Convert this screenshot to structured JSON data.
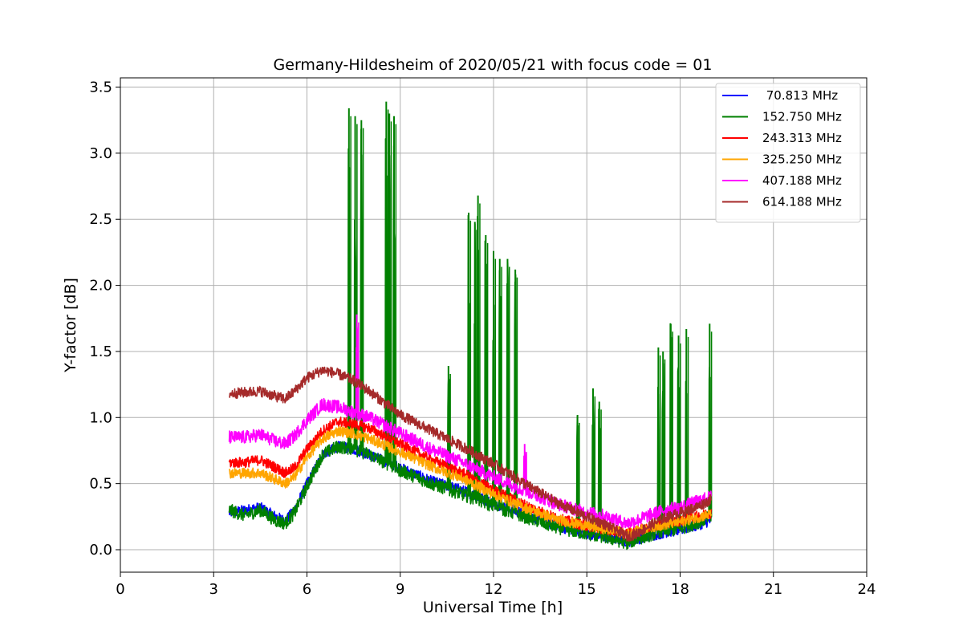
{
  "chart_data": {
    "type": "line",
    "title": "Germany-Hildesheim of 2020/05/21 with focus code = 01",
    "xlabel": "Universal Time [h]",
    "ylabel": "Y-factor [dB]",
    "xlim": [
      0,
      24
    ],
    "ylim": [
      -0.17,
      3.57
    ],
    "xticks": [
      0,
      3,
      6,
      9,
      12,
      15,
      18,
      21,
      24
    ],
    "xtick_labels": [
      "0",
      "3",
      "6",
      "9",
      "12",
      "15",
      "18",
      "21",
      "24"
    ],
    "yticks": [
      0.0,
      0.5,
      1.0,
      1.5,
      2.0,
      2.5,
      3.0,
      3.5
    ],
    "ytick_labels": [
      "0.0",
      "0.5",
      "1.0",
      "1.5",
      "2.0",
      "2.5",
      "3.0",
      "3.5"
    ],
    "grid": true,
    "legend_position": "top-right",
    "series": [
      {
        "name": " 70.813 MHz",
        "color": "#0000ff",
        "noise": 0.04,
        "x": [
          3.5,
          4.0,
          4.5,
          5.0,
          5.3,
          5.6,
          6.0,
          6.5,
          7.0,
          7.5,
          8.0,
          9.0,
          10.0,
          11.0,
          12.0,
          13.0,
          14.0,
          15.0,
          15.5,
          16.0,
          16.3,
          16.6,
          17.0,
          17.5,
          18.0,
          18.5,
          19.0
        ],
        "y": [
          0.28,
          0.3,
          0.32,
          0.25,
          0.22,
          0.3,
          0.5,
          0.72,
          0.78,
          0.76,
          0.72,
          0.62,
          0.52,
          0.45,
          0.35,
          0.27,
          0.18,
          0.12,
          0.1,
          0.08,
          0.06,
          0.08,
          0.1,
          0.13,
          0.15,
          0.18,
          0.22
        ]
      },
      {
        "name": "152.750 MHz",
        "color": "#008000",
        "noise": 0.05,
        "x": [
          3.5,
          4.0,
          4.5,
          5.0,
          5.3,
          5.6,
          6.0,
          6.5,
          7.0,
          7.5,
          8.0,
          9.0,
          10.0,
          11.0,
          12.0,
          13.0,
          14.0,
          15.0,
          15.5,
          16.0,
          16.3,
          16.6,
          17.0,
          17.5,
          18.0,
          18.5,
          19.0
        ],
        "y": [
          0.3,
          0.26,
          0.3,
          0.22,
          0.2,
          0.28,
          0.48,
          0.72,
          0.78,
          0.76,
          0.72,
          0.6,
          0.5,
          0.42,
          0.33,
          0.25,
          0.17,
          0.12,
          0.1,
          0.07,
          0.05,
          0.08,
          0.11,
          0.14,
          0.16,
          0.2,
          0.25
        ],
        "spikes": [
          {
            "x": 7.35,
            "y": 3.34
          },
          {
            "x": 7.55,
            "y": 3.28
          },
          {
            "x": 7.75,
            "y": 3.25
          },
          {
            "x": 8.55,
            "y": 3.39
          },
          {
            "x": 8.65,
            "y": 3.3
          },
          {
            "x": 8.8,
            "y": 3.28
          },
          {
            "x": 10.55,
            "y": 1.39
          },
          {
            "x": 11.2,
            "y": 2.55
          },
          {
            "x": 11.4,
            "y": 2.48
          },
          {
            "x": 11.5,
            "y": 2.68
          },
          {
            "x": 11.75,
            "y": 2.38
          },
          {
            "x": 12.0,
            "y": 2.26
          },
          {
            "x": 12.2,
            "y": 2.2
          },
          {
            "x": 12.45,
            "y": 2.2
          },
          {
            "x": 12.7,
            "y": 2.12
          },
          {
            "x": 14.7,
            "y": 1.02
          },
          {
            "x": 15.2,
            "y": 1.22
          },
          {
            "x": 15.4,
            "y": 1.12
          },
          {
            "x": 17.3,
            "y": 1.53
          },
          {
            "x": 17.45,
            "y": 1.5
          },
          {
            "x": 17.7,
            "y": 1.71
          },
          {
            "x": 17.95,
            "y": 1.62
          },
          {
            "x": 18.2,
            "y": 1.67
          },
          {
            "x": 18.95,
            "y": 1.71
          }
        ]
      },
      {
        "name": "243.313 MHz",
        "color": "#ff0000",
        "noise": 0.04,
        "x": [
          3.5,
          4.0,
          4.5,
          5.0,
          5.3,
          5.6,
          6.0,
          6.5,
          7.0,
          7.5,
          8.0,
          9.0,
          10.0,
          11.0,
          12.0,
          13.0,
          14.0,
          15.0,
          15.5,
          16.0,
          16.3,
          16.6,
          17.0,
          17.5,
          18.0,
          18.5,
          19.0
        ],
        "y": [
          0.66,
          0.66,
          0.68,
          0.62,
          0.58,
          0.62,
          0.76,
          0.9,
          0.97,
          0.95,
          0.92,
          0.8,
          0.68,
          0.58,
          0.45,
          0.34,
          0.24,
          0.18,
          0.16,
          0.14,
          0.12,
          0.14,
          0.17,
          0.2,
          0.22,
          0.25,
          0.28
        ]
      },
      {
        "name": "325.250 MHz",
        "color": "#ffa500",
        "noise": 0.04,
        "x": [
          3.5,
          4.0,
          4.5,
          5.0,
          5.3,
          5.6,
          6.0,
          6.5,
          7.0,
          7.5,
          8.0,
          9.0,
          10.0,
          11.0,
          12.0,
          13.0,
          14.0,
          15.0,
          15.5,
          16.0,
          16.3,
          16.6,
          17.0,
          17.5,
          18.0,
          18.5,
          19.0
        ],
        "y": [
          0.58,
          0.58,
          0.58,
          0.53,
          0.5,
          0.55,
          0.7,
          0.84,
          0.9,
          0.88,
          0.84,
          0.74,
          0.63,
          0.54,
          0.42,
          0.32,
          0.23,
          0.18,
          0.16,
          0.14,
          0.12,
          0.14,
          0.17,
          0.19,
          0.21,
          0.24,
          0.27
        ]
      },
      {
        "name": "407.188 MHz",
        "color": "#ff00ff",
        "noise": 0.05,
        "x": [
          3.5,
          4.0,
          4.5,
          5.0,
          5.3,
          5.6,
          6.0,
          6.5,
          7.0,
          7.5,
          8.0,
          9.0,
          10.0,
          11.0,
          12.0,
          13.0,
          14.0,
          15.0,
          15.5,
          16.0,
          16.3,
          16.6,
          17.0,
          17.5,
          18.0,
          18.5,
          19.0
        ],
        "y": [
          0.85,
          0.85,
          0.87,
          0.82,
          0.8,
          0.86,
          0.98,
          1.1,
          1.08,
          1.04,
          1.0,
          0.88,
          0.76,
          0.66,
          0.55,
          0.45,
          0.35,
          0.28,
          0.26,
          0.22,
          0.2,
          0.22,
          0.26,
          0.3,
          0.32,
          0.36,
          0.4
        ],
        "spikes": [
          {
            "x": 7.6,
            "y": 1.78
          },
          {
            "x": 13.0,
            "y": 0.8
          }
        ]
      },
      {
        "name": "614.188 MHz",
        "color": "#a52a2a",
        "noise": 0.04,
        "x": [
          3.5,
          4.0,
          4.5,
          5.0,
          5.3,
          5.6,
          6.0,
          6.5,
          7.0,
          7.5,
          8.0,
          9.0,
          10.0,
          11.0,
          12.0,
          13.0,
          14.0,
          15.0,
          15.5,
          16.0,
          16.3,
          16.6,
          17.0,
          17.5,
          18.0,
          18.5,
          19.0
        ],
        "y": [
          1.18,
          1.19,
          1.2,
          1.16,
          1.14,
          1.2,
          1.3,
          1.36,
          1.33,
          1.28,
          1.2,
          1.02,
          0.9,
          0.78,
          0.65,
          0.5,
          0.36,
          0.25,
          0.2,
          0.14,
          0.1,
          0.12,
          0.18,
          0.24,
          0.28,
          0.32,
          0.38
        ]
      }
    ]
  }
}
